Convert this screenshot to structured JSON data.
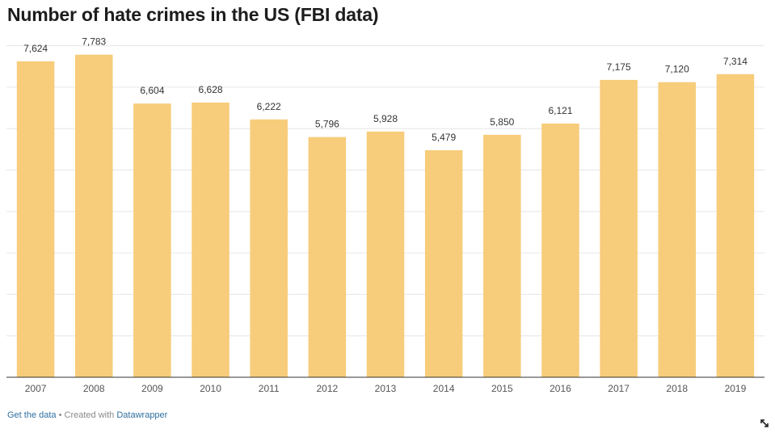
{
  "chart_data": {
    "type": "bar",
    "title": "Number of hate crimes in the US (FBI data)",
    "categories": [
      "2007",
      "2008",
      "2009",
      "2010",
      "2011",
      "2012",
      "2013",
      "2014",
      "2015",
      "2016",
      "2017",
      "2018",
      "2019"
    ],
    "series": [
      {
        "values": [
          7624,
          7783,
          6604,
          6628,
          6222,
          5796,
          5928,
          5479,
          5850,
          6121,
          7175,
          7120,
          7314
        ]
      }
    ],
    "value_labels": [
      "7,624",
      "7,783",
      "6,604",
      "6,628",
      "6,222",
      "5,796",
      "5,928",
      "5,479",
      "5,850",
      "6,121",
      "7,175",
      "7,120",
      "7,314"
    ],
    "ylim": [
      0,
      8000
    ],
    "grid": true,
    "bar_color": "#f7cc7a",
    "grid_color": "#e6e6e6",
    "baseline_color": "#333333"
  },
  "footer": {
    "get_data_label": "Get the data",
    "separator": "•",
    "created_with_label": "Created with",
    "tool_name": "Datawrapper"
  },
  "icons": {
    "expand": "expand-icon"
  }
}
